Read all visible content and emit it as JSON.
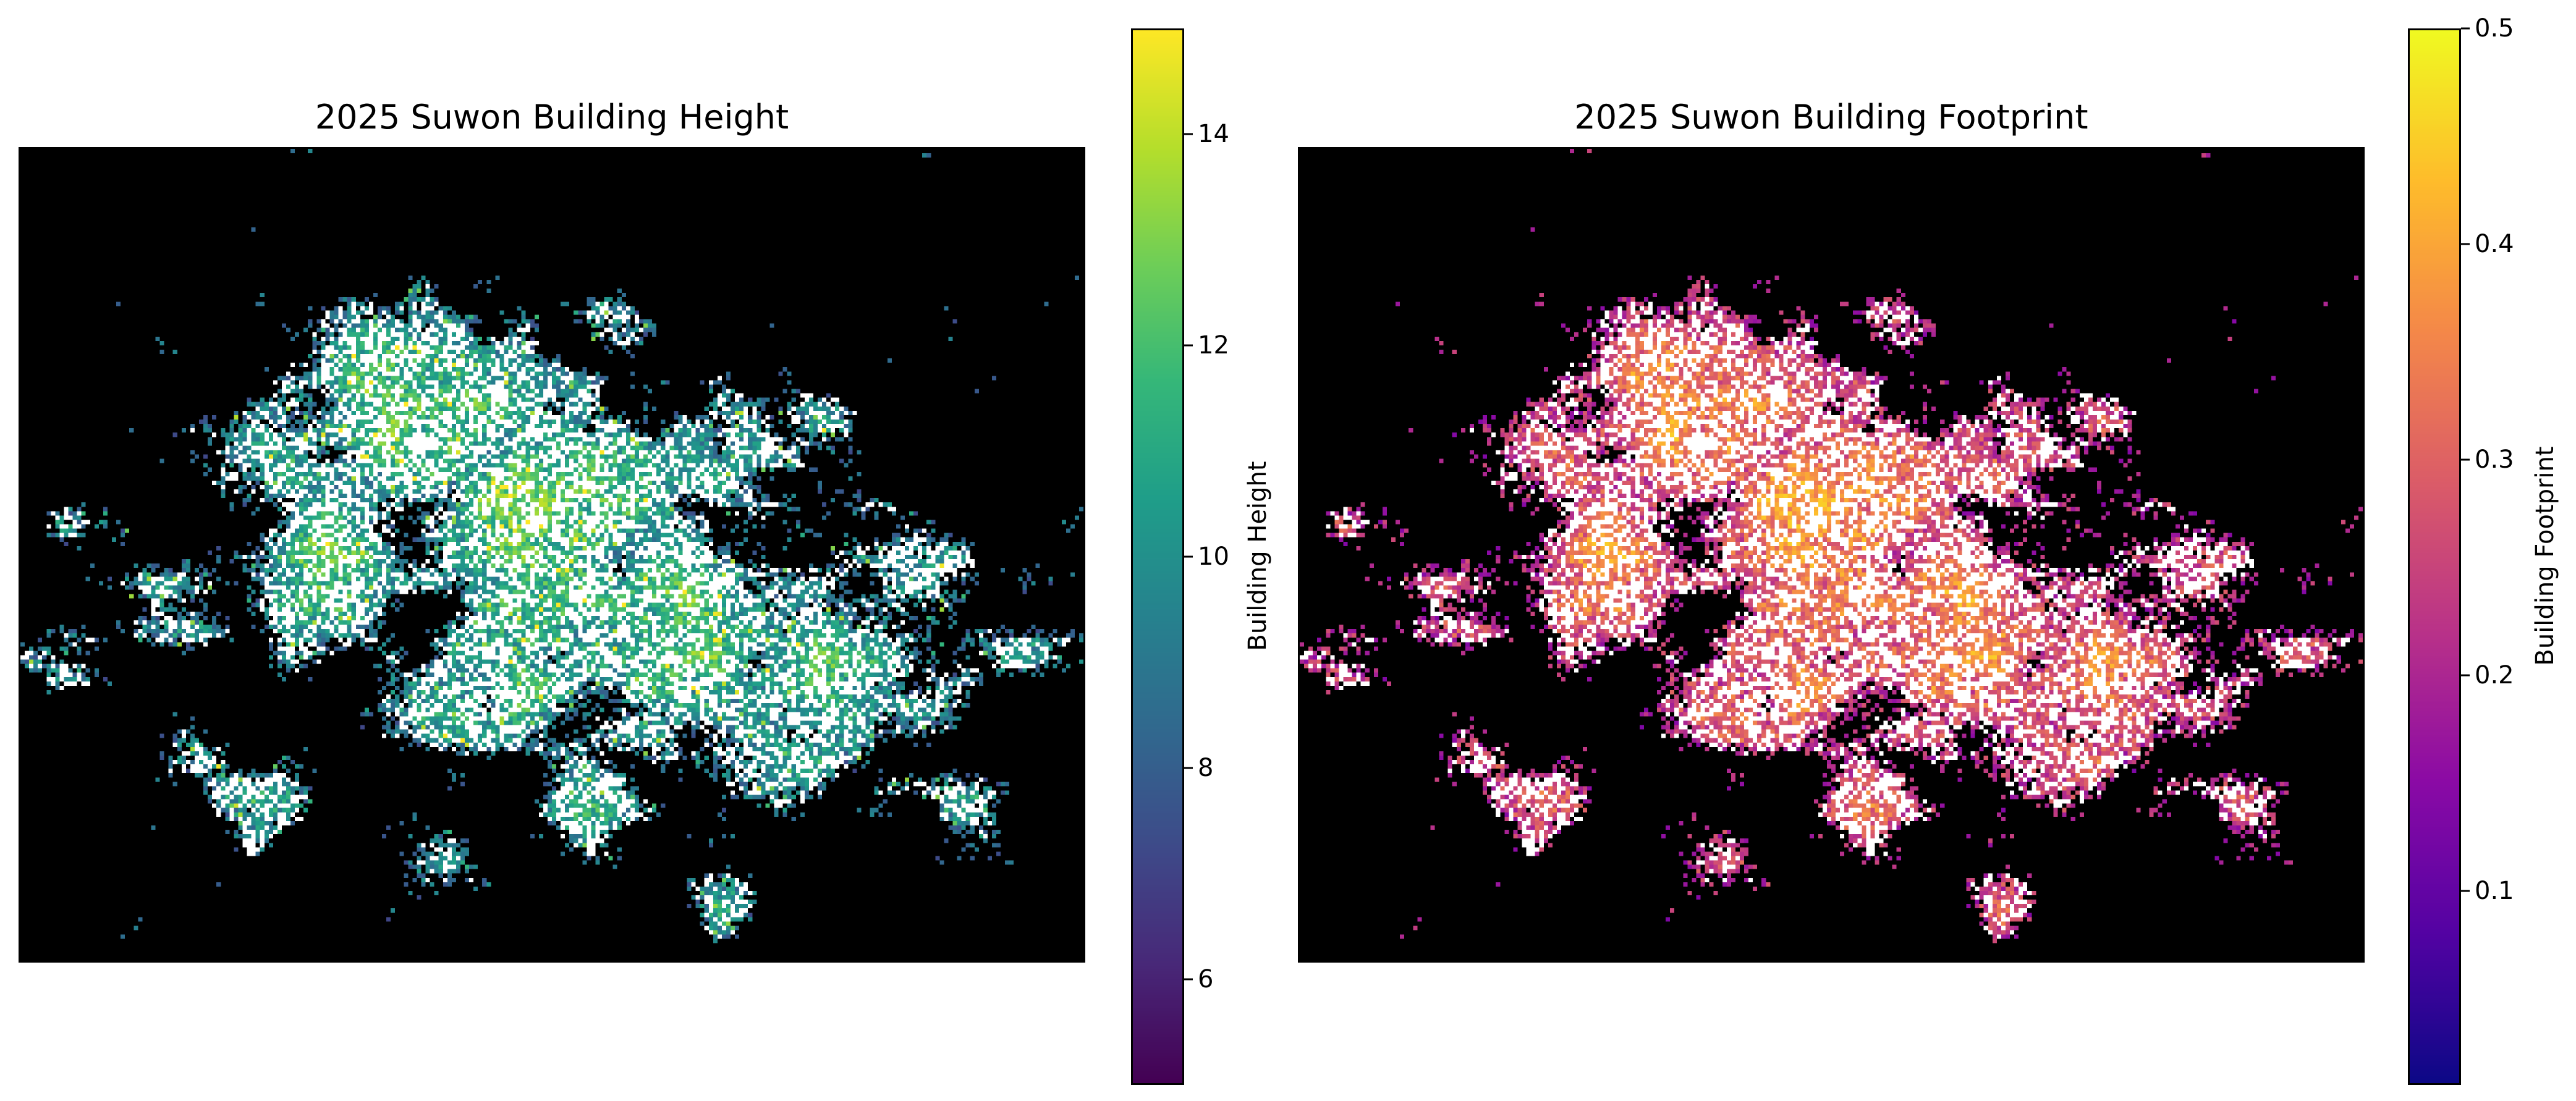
{
  "chart_data": [
    {
      "type": "heatmap",
      "title": "2025 Suwon Building Height",
      "colormap": "viridis",
      "background": "#000000",
      "nodata_color": "#ffffff",
      "colorbar": {
        "label": "Building Height",
        "range": [
          5,
          15
        ],
        "ticks": [
          6,
          8,
          10,
          12,
          14
        ],
        "tick_labels": [
          "6",
          "8",
          "10",
          "12",
          "14"
        ]
      },
      "axes_visible": false
    },
    {
      "type": "heatmap",
      "title": "2025 Suwon Building Footprint",
      "colormap": "plasma",
      "background": "#000000",
      "nodata_color": "#ffffff",
      "colorbar": {
        "label": "Building Footprint",
        "range": [
          0.01,
          0.5
        ],
        "ticks": [
          0.1,
          0.2,
          0.3,
          0.4,
          0.5
        ],
        "tick_labels": [
          "0.1",
          "0.2",
          "0.3",
          "0.4",
          "0.5"
        ]
      },
      "axes_visible": false
    }
  ]
}
